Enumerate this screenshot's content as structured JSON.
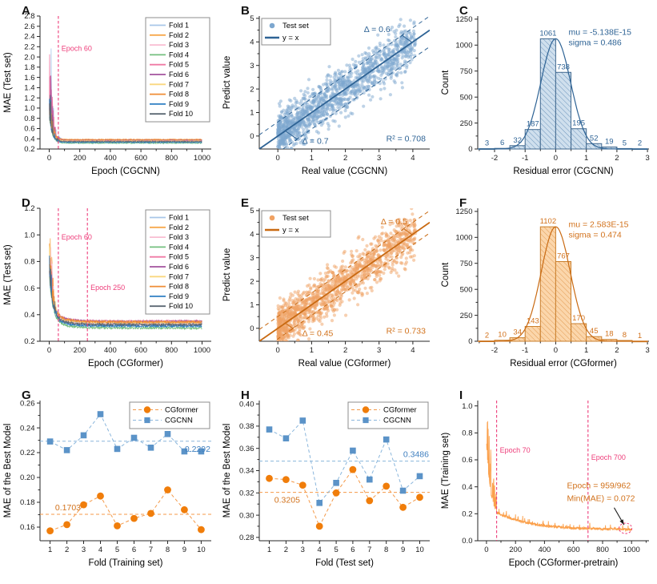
{
  "colors": {
    "blue_line": "#2e6395",
    "blue_scatter": "#7da7cf",
    "blue_text": "#2e6395",
    "blue_hist_fill": "#cfdfed",
    "blue_hatch": "#6e96bd",
    "blue_hist_edge": "#41698f",
    "orange_line": "#c96a12",
    "orange_scatter": "#f0a263",
    "orange_text": "#d2721c",
    "orange_hist_fill": "#fbd6ab",
    "orange_hatch": "#e29a52",
    "orange_hist_edge": "#ca7f2c",
    "pink": "#ee3d7a",
    "cgformer": "#f07d0a",
    "cgformer_line": "#f49a4a",
    "cgcnn": "#5b93c8",
    "cgcnn_line": "#8ab6dc",
    "pretrain": "#fba04b",
    "arrow": "#1a1a1a",
    "folds": [
      "#a8c6e8",
      "#f7a94d",
      "#f9bdd2",
      "#74bf7f",
      "#ef7aa5",
      "#a2539e",
      "#f9d77f",
      "#ef8c35",
      "#2f7fc4",
      "#5c6873"
    ]
  },
  "chart_data": [
    {
      "panel": "A",
      "type": "line",
      "model": "fast",
      "xlabel": "Epoch (CGCNN)",
      "ylabel": "MAE (Test set)",
      "xlim": [
        -60,
        1060
      ],
      "ylim": [
        0.2,
        2.8
      ],
      "seed": 7,
      "xticks": [
        0,
        200,
        400,
        600,
        800,
        1000
      ],
      "xdec": 0,
      "yticks": [
        0.2,
        0.4,
        0.6,
        0.8,
        1.0,
        1.2,
        1.4,
        1.6,
        1.8,
        2.0,
        2.2,
        2.4,
        2.6,
        2.8
      ],
      "ydec": 1,
      "vlines": [
        {
          "x": 60,
          "label": "Epoch 60",
          "label_x": 80,
          "label_y": 2.12
        }
      ],
      "series": [
        {
          "label": "Fold 1",
          "converge": 0.375,
          "peak": 2.77,
          "peak_epoch": 20
        },
        {
          "label": "Fold 2",
          "converge": 0.38,
          "peak": 1.25,
          "peak_epoch": 14
        },
        {
          "label": "Fold 3",
          "converge": 0.36,
          "peak": 1.15,
          "peak_epoch": 26
        },
        {
          "label": "Fold 4",
          "converge": 0.315,
          "peak": 1.2,
          "peak_epoch": 32
        },
        {
          "label": "Fold 5",
          "converge": 0.37,
          "peak": 2.2,
          "peak_epoch": 22
        },
        {
          "label": "Fold 6",
          "converge": 0.375,
          "peak": 2.07,
          "peak_epoch": 30
        },
        {
          "label": "Fold 7",
          "converge": 0.355,
          "peak": 1.3,
          "peak_epoch": 12
        },
        {
          "label": "Fold 8",
          "converge": 0.385,
          "peak": 1.2,
          "peak_epoch": 16
        },
        {
          "label": "Fold 9",
          "converge": 0.33,
          "peak": 1.28,
          "peak_epoch": 36
        },
        {
          "label": "Fold 10",
          "converge": 0.345,
          "peak": 1.3,
          "peak_epoch": 24
        }
      ]
    },
    {
      "panel": "B",
      "type": "scatter",
      "theme": "blue",
      "xlabel": "Real value (CGCNN)",
      "ylabel": "Predict value",
      "xlim": [
        -0.55,
        4.5
      ],
      "ylim": [
        -0.55,
        5.1
      ],
      "xticks": [
        0,
        1,
        2,
        3,
        4
      ],
      "yticks": [
        0,
        1,
        2,
        3,
        4,
        5
      ],
      "xdec": 0,
      "ydec": 0,
      "legend": {
        "point_label": "Test set",
        "line_label": "y = x"
      },
      "n_points": 1350,
      "sigma": 0.486,
      "seed": 11,
      "delta_upper": 0.6,
      "delta_lower": 0.7,
      "upper_label": "Δ = 0.6",
      "upper_label_pos": [
        2.55,
        4.42
      ],
      "lower_label": "Δ = 0.7",
      "lower_label_pos": [
        0.72,
        -0.33
      ],
      "r2_label": "R² = 0.708",
      "r2_pos": [
        4.38,
        -0.22
      ],
      "bracket_upper_x": 3.98,
      "bracket_lower_x": 0.22
    },
    {
      "panel": "C",
      "type": "histogram",
      "theme": "blue",
      "xlabel": "Residual error (CGCNN)",
      "ylabel": "Count",
      "xlim": [
        -2.55,
        3.05
      ],
      "ylim": [
        0,
        1280
      ],
      "xticks": [
        -2,
        -1,
        0,
        1,
        2,
        3
      ],
      "yticks": [
        0,
        250,
        500,
        750,
        1000,
        1250
      ],
      "xdec": 0,
      "ydec": 0,
      "bin_start": -2.5,
      "bin_width": 0.5,
      "counts": [
        3,
        6,
        32,
        187,
        1061,
        738,
        195,
        52,
        19,
        5,
        2
      ],
      "sigma": 0.486,
      "stats_lines": [
        "mu = -5.138E-15",
        "sigma = 0.486"
      ],
      "stats_x": 0.42,
      "stats_y": [
        1100,
        1000
      ]
    },
    {
      "panel": "D",
      "type": "line",
      "model": "slow",
      "xlabel": "Epoch (CGformer)",
      "ylabel": "MAE (Test set)",
      "xlim": [
        -60,
        1060
      ],
      "ylim": [
        0.2,
        1.2
      ],
      "seed": 13,
      "xticks": [
        0,
        200,
        400,
        600,
        800,
        1000
      ],
      "xdec": 0,
      "yticks": [
        0.2,
        0.4,
        0.6,
        0.8,
        1.0,
        1.2
      ],
      "ydec": 1,
      "vlines": [
        {
          "x": 60,
          "label": "Epoch 60",
          "label_x": 80,
          "label_y": 0.965
        },
        {
          "x": 250,
          "label": "Epoch 250",
          "label_x": 270,
          "label_y": 0.585
        }
      ],
      "series": [
        {
          "label": "Fold 1",
          "converge": 0.335,
          "peak": 0.86,
          "peak_epoch": 22
        },
        {
          "label": "Fold 2",
          "converge": 0.345,
          "peak": 1.18,
          "peak_epoch": 20
        },
        {
          "label": "Fold 3",
          "converge": 0.33,
          "peak": 1.04,
          "peak_epoch": 14
        },
        {
          "label": "Fold 4",
          "converge": 0.3,
          "peak": 0.9,
          "peak_epoch": 26
        },
        {
          "label": "Fold 5",
          "converge": 0.35,
          "peak": 0.95,
          "peak_epoch": 18
        },
        {
          "label": "Fold 6",
          "converge": 0.348,
          "peak": 0.85,
          "peak_epoch": 28
        },
        {
          "label": "Fold 7",
          "converge": 0.34,
          "peak": 0.92,
          "peak_epoch": 12
        },
        {
          "label": "Fold 8",
          "converge": 0.345,
          "peak": 0.93,
          "peak_epoch": 24
        },
        {
          "label": "Fold 9",
          "converge": 0.315,
          "peak": 0.87,
          "peak_epoch": 30
        },
        {
          "label": "Fold 10",
          "converge": 0.325,
          "peak": 0.88,
          "peak_epoch": 16
        }
      ]
    },
    {
      "panel": "E",
      "type": "scatter",
      "theme": "orange",
      "xlabel": "Real value (CGformer)",
      "ylabel": "Predict value",
      "xlim": [
        -0.55,
        4.5
      ],
      "ylim": [
        -0.55,
        5.1
      ],
      "xticks": [
        0,
        1,
        2,
        3,
        4
      ],
      "yticks": [
        0,
        1,
        2,
        3,
        4,
        5
      ],
      "xdec": 0,
      "ydec": 0,
      "legend": {
        "point_label": "Test set",
        "line_label": "y = x"
      },
      "n_points": 1350,
      "sigma": 0.474,
      "seed": 23,
      "delta_upper": 0.5,
      "delta_lower": 0.45,
      "upper_label": "Δ = 0.5",
      "upper_label_pos": [
        3.05,
        4.42
      ],
      "lower_label": "Δ = 0.45",
      "lower_label_pos": [
        0.72,
        -0.33
      ],
      "r2_label": "R² = 0.733",
      "r2_pos": [
        4.38,
        -0.22
      ],
      "bracket_upper_x": 3.98,
      "bracket_lower_x": 0.22
    },
    {
      "panel": "F",
      "type": "histogram",
      "theme": "orange",
      "xlabel": "Residual error (CGformer)",
      "ylabel": "Count",
      "xlim": [
        -2.55,
        3.05
      ],
      "ylim": [
        0,
        1280
      ],
      "xticks": [
        -2,
        -1,
        0,
        1,
        2,
        3
      ],
      "yticks": [
        0,
        250,
        500,
        750,
        1000,
        1250
      ],
      "xdec": 0,
      "ydec": 0,
      "bin_start": -2.5,
      "bin_width": 0.5,
      "counts": [
        2,
        10,
        34,
        143,
        1102,
        767,
        170,
        45,
        18,
        8,
        1
      ],
      "sigma": 0.474,
      "stats_lines": [
        "mu = 2.583E-15",
        "sigma = 0.474"
      ],
      "stats_x": 0.42,
      "stats_y": [
        1100,
        1000
      ]
    },
    {
      "panel": "G",
      "type": "fold",
      "xlabel": "Fold (Training set)",
      "ylabel": "MAE of the Best Model",
      "xlim": [
        0.4,
        10.6
      ],
      "ylim": [
        0.149,
        0.262
      ],
      "xticks": [
        1,
        2,
        3,
        4,
        5,
        6,
        7,
        8,
        9,
        10
      ],
      "xdec": 0,
      "yticks": [
        0.16,
        0.18,
        0.2,
        0.22,
        0.24,
        0.26
      ],
      "ydec": 2,
      "series": [
        {
          "label": "CGformer",
          "marker": "circle",
          "values": [
            0.157,
            0.162,
            0.178,
            0.185,
            0.161,
            0.167,
            0.171,
            0.19,
            0.174,
            0.158
          ],
          "mean": 0.1703,
          "mean_label": "0.1703",
          "mean_label_side": "left-above"
        },
        {
          "label": "CGCNN",
          "marker": "square",
          "values": [
            0.229,
            0.222,
            0.234,
            0.251,
            0.223,
            0.232,
            0.224,
            0.235,
            0.221,
            0.221
          ],
          "mean": 0.2292,
          "mean_label": "0.2292",
          "mean_label_side": "right-below"
        }
      ]
    },
    {
      "panel": "H",
      "type": "fold",
      "xlabel": "Fold (Test set)",
      "ylabel": "MAE of the Best Model",
      "xlim": [
        0.4,
        10.6
      ],
      "ylim": [
        0.277,
        0.403
      ],
      "xticks": [
        1,
        2,
        3,
        4,
        5,
        6,
        7,
        8,
        9,
        10
      ],
      "xdec": 0,
      "yticks": [
        0.28,
        0.3,
        0.32,
        0.34,
        0.36,
        0.38,
        0.4
      ],
      "ydec": 2,
      "series": [
        {
          "label": "CGformer",
          "marker": "circle",
          "values": [
            0.333,
            0.332,
            0.327,
            0.29,
            0.32,
            0.341,
            0.313,
            0.326,
            0.307,
            0.316
          ],
          "mean": 0.3205,
          "mean_label": "0.3205",
          "mean_label_side": "left-below"
        },
        {
          "label": "CGCNN",
          "marker": "square",
          "values": [
            0.377,
            0.369,
            0.385,
            0.311,
            0.329,
            0.358,
            0.332,
            0.368,
            0.322,
            0.335
          ],
          "mean": 0.3486,
          "mean_label": "0.3486",
          "mean_label_side": "right-above"
        }
      ]
    },
    {
      "panel": "I",
      "type": "pretrain",
      "xlabel": "Epoch (CGformer-pretrain)",
      "ylabel": "MAE (Training set)",
      "xlim": [
        -60,
        1120
      ],
      "ylim": [
        0,
        1.04
      ],
      "seed": 5,
      "xticks": [
        0,
        200,
        400,
        600,
        800,
        1000
      ],
      "xdec": 0,
      "yticks": [
        0.0,
        0.2,
        0.4,
        0.6,
        0.8,
        1.0
      ],
      "ydec": 1,
      "vlines": [
        {
          "x": 70,
          "label": "Epoch 70",
          "label_x": 92,
          "label_y": 0.655
        },
        {
          "x": 700,
          "label": "Epoch 700",
          "label_x": 722,
          "label_y": 0.6
        }
      ],
      "annotation": {
        "lines": [
          "Epoch = 959/962",
          "Min(MAE) = 0.072"
        ],
        "x": 555,
        "y": 0.39,
        "line_gap": 0.095,
        "arrow": [
          [
            880,
            0.245
          ],
          [
            948,
            0.118
          ]
        ],
        "circle": [
          958,
          0.092
        ],
        "min_epoch": 959,
        "min_mae": 0.072
      },
      "series": {
        "converge": 0.085,
        "peak": 0.92
      }
    }
  ]
}
